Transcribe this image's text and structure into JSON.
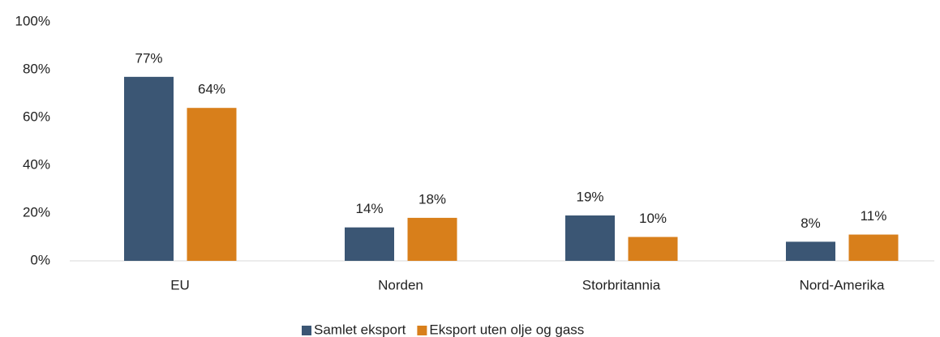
{
  "chart_data": {
    "type": "bar",
    "categories": [
      "EU",
      "Norden",
      "Storbritannia",
      "Nord-Amerika"
    ],
    "series": [
      {
        "name": "Samlet eksport",
        "color": "#3b5674",
        "values": [
          77,
          14,
          19,
          8
        ],
        "value_labels": [
          "77%",
          "14%",
          "19%",
          "8%"
        ]
      },
      {
        "name": "Eksport uten olje og gass",
        "color": "#d87f1b",
        "values": [
          64,
          18,
          10,
          11
        ],
        "value_labels": [
          "64%",
          "18%",
          "10%",
          "11%"
        ]
      }
    ],
    "ylim": [
      0,
      100
    ],
    "yticks": [
      {
        "value": 0,
        "label": "0%"
      },
      {
        "value": 20,
        "label": "20%"
      },
      {
        "value": 40,
        "label": "40%"
      },
      {
        "value": 60,
        "label": "60%"
      },
      {
        "value": 80,
        "label": "80%"
      },
      {
        "value": 100,
        "label": "100%"
      }
    ],
    "grid": false,
    "legend": "bottom"
  }
}
